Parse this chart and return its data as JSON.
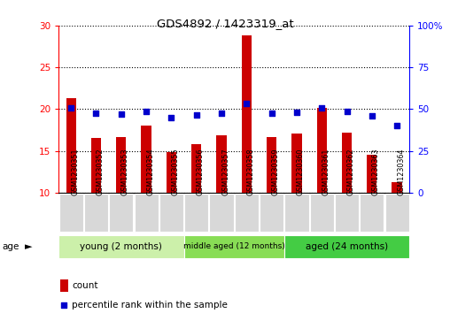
{
  "title": "GDS4892 / 1423319_at",
  "samples": [
    "GSM1230351",
    "GSM1230352",
    "GSM1230353",
    "GSM1230354",
    "GSM1230355",
    "GSM1230356",
    "GSM1230357",
    "GSM1230358",
    "GSM1230359",
    "GSM1230360",
    "GSM1230361",
    "GSM1230362",
    "GSM1230363",
    "GSM1230364"
  ],
  "counts": [
    21.3,
    16.5,
    16.7,
    18.0,
    14.8,
    15.8,
    16.9,
    28.8,
    16.7,
    17.1,
    20.1,
    17.2,
    14.5,
    11.2
  ],
  "percentiles": [
    50.5,
    47.5,
    47.0,
    48.5,
    45.0,
    46.5,
    47.5,
    53.5,
    47.5,
    48.0,
    51.0,
    48.5,
    46.0,
    40.0
  ],
  "ylim_left": [
    10,
    30
  ],
  "ylim_right": [
    0,
    100
  ],
  "yticks_left": [
    10,
    15,
    20,
    25,
    30
  ],
  "yticks_right": [
    0,
    25,
    50,
    75,
    100
  ],
  "bar_color": "#cc0000",
  "scatter_color": "#0000cc",
  "groups": [
    {
      "label": "young (2 months)",
      "start": 0,
      "end": 5,
      "color": "#ccf0aa"
    },
    {
      "label": "middle aged (12 months)",
      "start": 5,
      "end": 9,
      "color": "#88dd55"
    },
    {
      "label": "aged (24 months)",
      "start": 9,
      "end": 14,
      "color": "#44cc44"
    }
  ],
  "background_color": "#ffffff",
  "age_label": "age",
  "legend_count": "count",
  "legend_percentile": "percentile rank within the sample"
}
